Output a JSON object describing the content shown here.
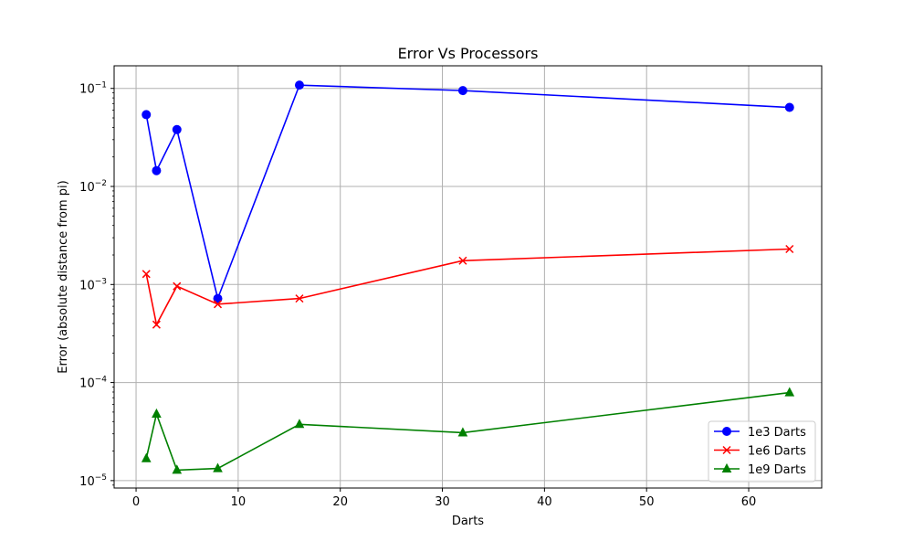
{
  "chart_data": {
    "type": "line",
    "title": "Error Vs Processors",
    "xlabel": "Darts",
    "ylabel": "Error (absolute distance from pi)",
    "xscale": "linear",
    "yscale": "log",
    "xlim": [
      -2.15,
      67.15
    ],
    "ylim": [
      8.4e-06,
      0.17
    ],
    "xticks": [
      {
        "value": 0,
        "label": "0"
      },
      {
        "value": 10,
        "label": "10"
      },
      {
        "value": 20,
        "label": "20"
      },
      {
        "value": 30,
        "label": "30"
      },
      {
        "value": 40,
        "label": "40"
      },
      {
        "value": 50,
        "label": "50"
      },
      {
        "value": 60,
        "label": "60"
      }
    ],
    "yticks": [
      {
        "value": 1e-05,
        "base": "10",
        "exp": "−5"
      },
      {
        "value": 0.0001,
        "base": "10",
        "exp": "−4"
      },
      {
        "value": 0.001,
        "base": "10",
        "exp": "−3"
      },
      {
        "value": 0.01,
        "base": "10",
        "exp": "−2"
      },
      {
        "value": 0.1,
        "base": "10",
        "exp": "−1"
      }
    ],
    "grid": true,
    "legend_position": "lower-right",
    "x": [
      1,
      2,
      4,
      8,
      16,
      32,
      64
    ],
    "series": [
      {
        "name": "1e3 Darts",
        "color": "#0000ff",
        "marker": "circle",
        "values": [
          0.054,
          0.0145,
          0.038,
          0.00072,
          0.108,
          0.095,
          0.064
        ]
      },
      {
        "name": "1e6 Darts",
        "color": "#ff0000",
        "marker": "x",
        "values": [
          0.00128,
          0.00039,
          0.00096,
          0.00063,
          0.00072,
          0.00175,
          0.0023
        ]
      },
      {
        "name": "1e9 Darts",
        "color": "#008000",
        "marker": "triangle",
        "values": [
          1.68e-05,
          4.78e-05,
          1.28e-05,
          1.33e-05,
          3.75e-05,
          3.08e-05,
          7.9e-05
        ]
      }
    ]
  }
}
